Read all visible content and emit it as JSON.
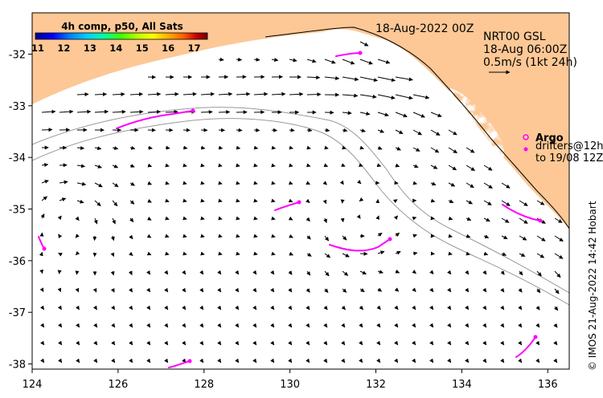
{
  "map": {
    "product_title": "4h comp, p50, All Sats",
    "timestamp": "18-Aug-2022 00Z",
    "current_source": "NRT00 GSL",
    "current_time": "18-Aug 06:00Z",
    "vector_scale_label": "0.5m/s (1kt 24h)",
    "argo_label": "Argo",
    "drifters_line1": "drifters@12h",
    "drifters_line2": "to 19/08 12Z",
    "credit": "© IMOS 21-Aug-2022 14:42 Hobart",
    "colorbar": {
      "ticks": [
        "11",
        "12",
        "13",
        "14",
        "15",
        "16",
        "17"
      ],
      "range": [
        11,
        17.6
      ],
      "colors": [
        "#00008b",
        "#0000ff",
        "#0080ff",
        "#00d0ff",
        "#00ffa0",
        "#40ff00",
        "#c0ff00",
        "#ffff00",
        "#ffb000",
        "#ff6000",
        "#c00000",
        "#700000"
      ]
    },
    "axes": {
      "lon_ticks": [
        "124",
        "126",
        "128",
        "130",
        "132",
        "134",
        "136"
      ],
      "lat_ticks": [
        "-32",
        "-33",
        "-34",
        "-35",
        "-36",
        "-37",
        "-38"
      ],
      "lon_range": [
        124,
        136.5
      ],
      "lat_range": [
        -38.1,
        -31.2
      ]
    },
    "colors": {
      "land": "#fdc896",
      "ocean_gap": "#ffffff",
      "argo": "#ff00ff",
      "drifter": "#ff00ff"
    }
  }
}
